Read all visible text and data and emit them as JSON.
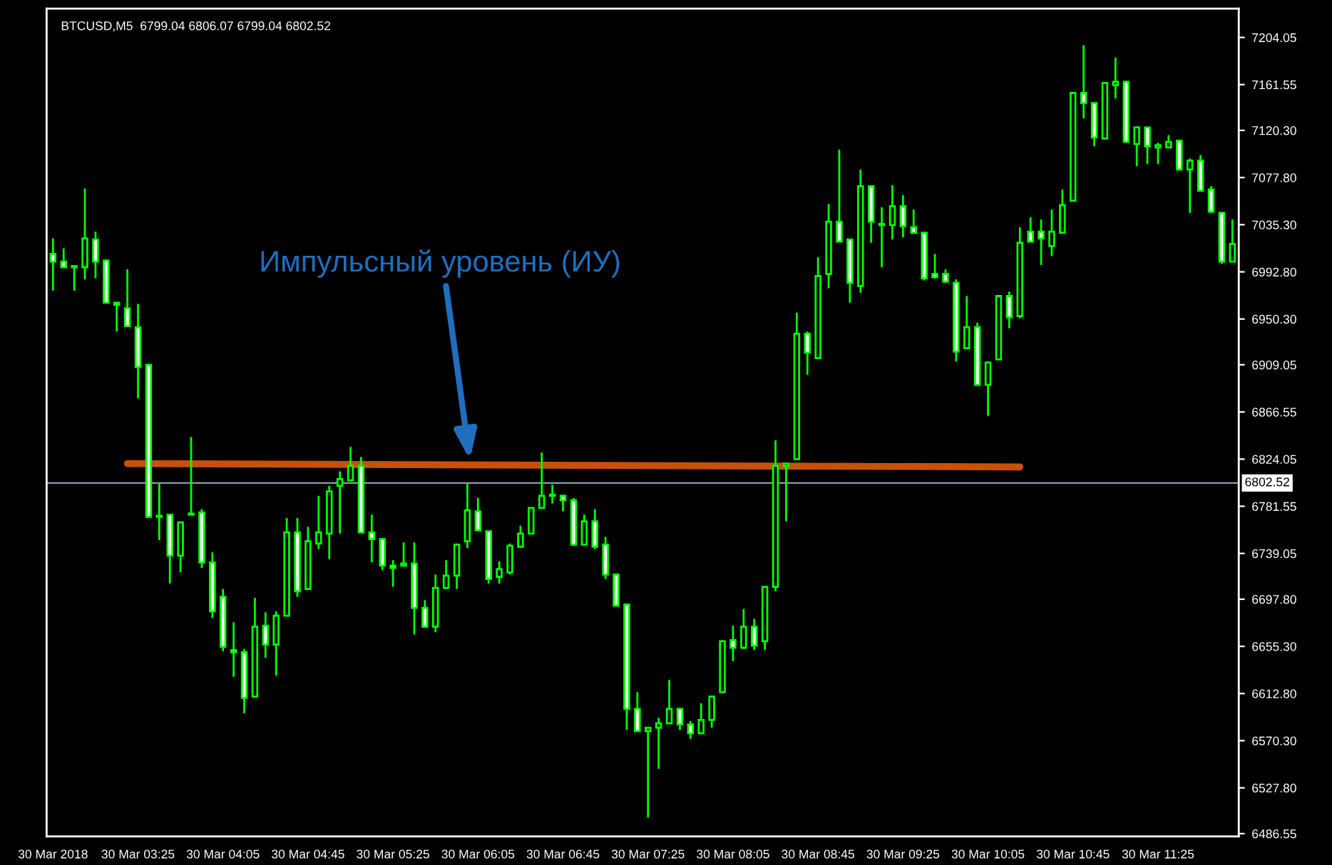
{
  "chart_data": {
    "type": "candlestick",
    "title": "BTCUSD,M5  6799.04 6806.07 6799.04 6802.52",
    "categories": [
      "30 Mar 2018",
      null,
      null,
      null,
      null,
      null,
      null,
      null,
      "30 Mar 03:25",
      null,
      null,
      null,
      null,
      null,
      null,
      null,
      "30 Mar 04:05",
      null,
      null,
      null,
      null,
      null,
      null,
      null,
      "30 Mar 04:45",
      null,
      null,
      null,
      null,
      null,
      null,
      null,
      "30 Mar 05:25",
      null,
      null,
      null,
      null,
      null,
      null,
      null,
      "30 Mar 06:05",
      null,
      null,
      null,
      null,
      null,
      null,
      null,
      "30 Mar 06:45",
      null,
      null,
      null,
      null,
      null,
      null,
      null,
      "30 Mar 07:25",
      null,
      null,
      null,
      null,
      null,
      null,
      null,
      "30 Mar 08:05",
      null,
      null,
      null,
      null,
      null,
      null,
      null,
      "30 Mar 08:45",
      null,
      null,
      null,
      null,
      null,
      null,
      null,
      "30 Mar 09:25",
      null,
      null,
      null,
      null,
      null,
      null,
      null,
      "30 Mar 10:05",
      null,
      null,
      null,
      null,
      null,
      null,
      null,
      "30 Mar 10:45",
      null,
      null,
      null,
      null,
      null,
      null,
      null,
      "30 Mar 11:25",
      null,
      null,
      null,
      null,
      null,
      null,
      null
    ],
    "ohlc": [
      [
        7009,
        7023,
        6976,
        7002
      ],
      [
        7002,
        7014,
        6997,
        6997
      ],
      [
        6998,
        6998,
        6976,
        6997
      ],
      [
        6997,
        7068,
        6986,
        7023
      ],
      [
        7022,
        7029,
        6987,
        7002
      ],
      [
        7003,
        7004,
        6965,
        6965
      ],
      [
        6965,
        6965,
        6939,
        6963
      ],
      [
        6960,
        6995,
        6944,
        6944
      ],
      [
        6943,
        6964,
        6879,
        6907
      ],
      [
        6909,
        6910,
        6772,
        6772
      ],
      [
        6773,
        6802,
        6751,
        6772
      ],
      [
        6774,
        6774,
        6712,
        6737
      ],
      [
        6737,
        6767,
        6722,
        6767
      ],
      [
        6774,
        6844,
        6774,
        6775
      ],
      [
        6776,
        6779,
        6726,
        6731
      ],
      [
        6731,
        6740,
        6681,
        6687
      ],
      [
        6700,
        6707,
        6651,
        6655
      ],
      [
        6652,
        6677,
        6628,
        6650
      ],
      [
        6650,
        6653,
        6595,
        6609
      ],
      [
        6610,
        6699,
        6609,
        6673
      ],
      [
        6674,
        6686,
        6645,
        6657
      ],
      [
        6657,
        6687,
        6629,
        6683
      ],
      [
        6683,
        6771,
        6683,
        6758
      ],
      [
        6758,
        6771,
        6700,
        6705
      ],
      [
        6707,
        6763,
        6707,
        6750
      ],
      [
        6748,
        6791,
        6743,
        6758
      ],
      [
        6757,
        6800,
        6734,
        6795
      ],
      [
        6800,
        6813,
        6757,
        6806
      ],
      [
        6805,
        6835,
        6805,
        6818
      ],
      [
        6818,
        6826,
        6758,
        6758
      ],
      [
        6758,
        6774,
        6731,
        6752
      ],
      [
        6752,
        6753,
        6724,
        6728
      ],
      [
        6728,
        6733,
        6709,
        6726
      ],
      [
        6728,
        6749,
        6728,
        6730
      ],
      [
        6730,
        6749,
        6666,
        6690
      ],
      [
        6690,
        6697,
        6673,
        6673
      ],
      [
        6673,
        6720,
        6668,
        6708
      ],
      [
        6708,
        6733,
        6707,
        6719
      ],
      [
        6719,
        6748,
        6707,
        6747
      ],
      [
        6750,
        6802,
        6744,
        6778
      ],
      [
        6777,
        6789,
        6759,
        6760
      ],
      [
        6759,
        6759,
        6712,
        6716
      ],
      [
        6718,
        6732,
        6712,
        6725
      ],
      [
        6722,
        6748,
        6720,
        6746
      ],
      [
        6745,
        6764,
        6745,
        6757
      ],
      [
        6757,
        6780,
        6757,
        6780
      ],
      [
        6780,
        6830,
        6780,
        6791
      ],
      [
        6791,
        6801,
        6784,
        6792
      ],
      [
        6791,
        6792,
        6777,
        6787
      ],
      [
        6787,
        6789,
        6746,
        6747
      ],
      [
        6747,
        6774,
        6747,
        6768
      ],
      [
        6768,
        6779,
        6743,
        6745
      ],
      [
        6747,
        6754,
        6716,
        6720
      ],
      [
        6720,
        6720,
        6692,
        6692
      ],
      [
        6693,
        6694,
        6580,
        6599
      ],
      [
        6599,
        6614,
        6579,
        6579
      ],
      [
        6579,
        6582,
        6501,
        6582
      ],
      [
        6582,
        6591,
        6545,
        6586
      ],
      [
        6586,
        6625,
        6586,
        6599
      ],
      [
        6599,
        6600,
        6580,
        6585
      ],
      [
        6585,
        6588,
        6572,
        6577
      ],
      [
        6577,
        6604,
        6577,
        6589
      ],
      [
        6589,
        6610,
        6582,
        6610
      ],
      [
        6614,
        6660,
        6614,
        6660
      ],
      [
        6661,
        6674,
        6642,
        6654
      ],
      [
        6654,
        6689,
        6653,
        6673
      ],
      [
        6673,
        6680,
        6652,
        6656
      ],
      [
        6660,
        6709,
        6652,
        6709
      ],
      [
        6709,
        6841,
        6705,
        6818
      ],
      [
        6818,
        6820,
        6768,
        6820
      ],
      [
        6824,
        6956,
        6824,
        6937
      ],
      [
        6937,
        6939,
        6900,
        6920
      ],
      [
        6915,
        7006,
        6915,
        6989
      ],
      [
        6991,
        7054,
        6978,
        7038
      ],
      [
        7038,
        7103,
        7020,
        7020
      ],
      [
        7022,
        7022,
        6965,
        6983
      ],
      [
        6980,
        7085,
        6974,
        7070
      ],
      [
        7070,
        7070,
        7019,
        7038
      ],
      [
        7036,
        7051,
        6997,
        7035
      ],
      [
        7035,
        7071,
        7022,
        7052
      ],
      [
        7052,
        7062,
        7024,
        7034
      ],
      [
        7033,
        7049,
        7027,
        7028
      ],
      [
        7028,
        7028,
        6985,
        6987
      ],
      [
        6991,
        7009,
        6987,
        6988
      ],
      [
        6991,
        6995,
        6983,
        6984
      ],
      [
        6983,
        6986,
        6912,
        6921
      ],
      [
        6924,
        6971,
        6923,
        6943
      ],
      [
        6943,
        6947,
        6891,
        6891
      ],
      [
        6891,
        6912,
        6863,
        6911
      ],
      [
        6914,
        6971,
        6914,
        6971
      ],
      [
        6971,
        6975,
        6942,
        6952
      ],
      [
        6953,
        7033,
        6951,
        7019
      ],
      [
        7029,
        7042,
        7020,
        7020
      ],
      [
        7029,
        7040,
        6999,
        7023
      ],
      [
        7016,
        7049,
        7007,
        7029
      ],
      [
        7028,
        7067,
        7028,
        7053
      ],
      [
        7057,
        7154,
        7056,
        7154
      ],
      [
        7154,
        7197,
        7131,
        7145
      ],
      [
        7145,
        7145,
        7106,
        7114
      ],
      [
        7113,
        7163,
        7113,
        7163
      ],
      [
        7161,
        7186,
        7149,
        7164
      ],
      [
        7164,
        7165,
        7110,
        7110
      ],
      [
        7108,
        7124,
        7088,
        7123
      ],
      [
        7123,
        7123,
        7090,
        7106
      ],
      [
        7105,
        7109,
        7090,
        7107
      ],
      [
        7105,
        7116,
        7105,
        7110
      ],
      [
        7111,
        7112,
        7084,
        7085
      ],
      [
        7085,
        7095,
        7046,
        7093
      ],
      [
        7093,
        7098,
        7066,
        7066
      ],
      [
        7067,
        7070,
        7046,
        7047
      ],
      [
        7046,
        7046,
        7000,
        7002
      ],
      [
        7002,
        7040,
        7002,
        7018
      ]
    ],
    "series": [
      {
        "type": "line",
        "color": "#c8500a",
        "values": [
          null,
          null,
          null,
          null,
          null,
          null,
          null,
          6820,
          null,
          null,
          null,
          null,
          null,
          null,
          null,
          null,
          null,
          null,
          null,
          null,
          null,
          null,
          null,
          null,
          null,
          null,
          null,
          null,
          null,
          null,
          null,
          null,
          null,
          null,
          null,
          null,
          null,
          null,
          null,
          null,
          null,
          null,
          null,
          null,
          null,
          null,
          null,
          null,
          null,
          null,
          null,
          null,
          null,
          null,
          null,
          null,
          null,
          null,
          null,
          null,
          null,
          null,
          null,
          null,
          null,
          null,
          null,
          null,
          null,
          null,
          null,
          null,
          null,
          null,
          null,
          null,
          null,
          null,
          null,
          null,
          null,
          null,
          null,
          null,
          null,
          null,
          null,
          null,
          null,
          null,
          null,
          6817,
          null,
          null,
          null,
          null,
          null,
          null,
          null,
          null,
          null,
          null,
          null,
          null,
          null,
          null,
          null,
          null,
          null,
          null,
          null,
          null
        ]
      }
    ],
    "annotations": [
      "Импульсный уровень (ИУ)"
    ],
    "ref_lines": [
      {
        "axis": "y",
        "value": 6802.52,
        "label": "6802.52",
        "color": "#8a9bb0"
      }
    ],
    "ylim": [
      6484,
      7230
    ],
    "yticks": [
      7204.05,
      7161.55,
      {
        "value": 7120.3,
        "label": "7120.30"
      },
      {
        "value": 7077.8,
        "label": "7077.80"
      },
      {
        "value": 7035.3,
        "label": "7035.30"
      },
      {
        "value": 6992.8,
        "label": "6992.80"
      },
      {
        "value": 6950.3,
        "label": "6950.30"
      },
      6909.05,
      6866.55,
      6824.05,
      6781.55,
      6739.05,
      {
        "value": 6697.8,
        "label": "6697.80"
      },
      {
        "value": 6655.3,
        "label": "6655.30"
      },
      {
        "value": 6612.8,
        "label": "6612.80"
      },
      {
        "value": 6570.3,
        "label": "6570.30"
      },
      {
        "value": 6527.8,
        "label": "6527.80"
      },
      6486.55
    ],
    "grid": false,
    "legend": false
  }
}
